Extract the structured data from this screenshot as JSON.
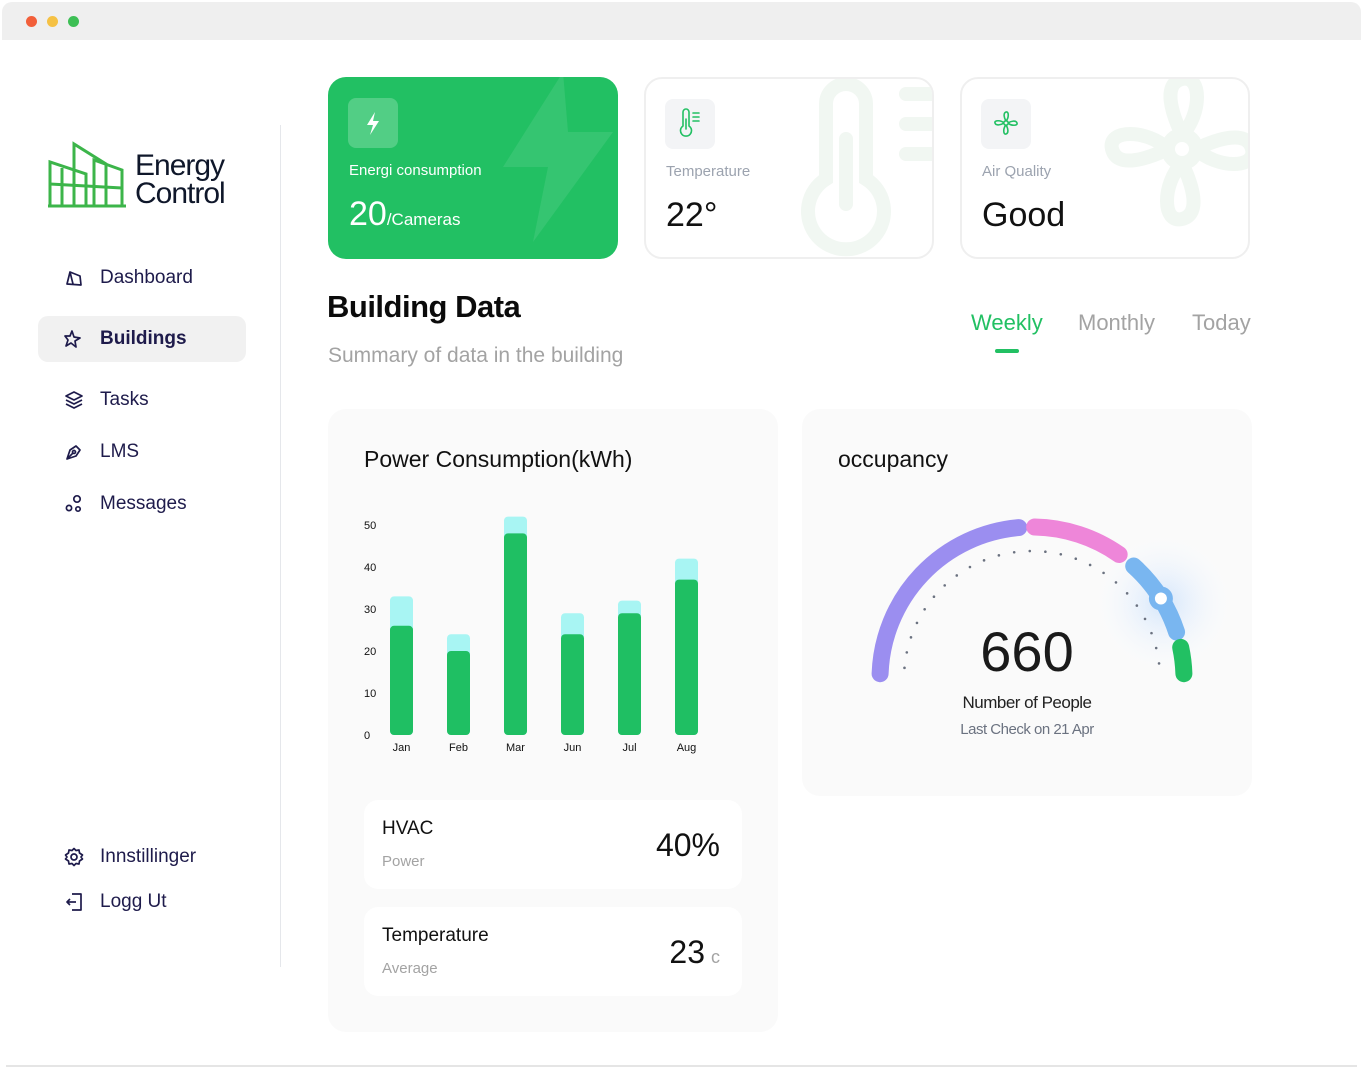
{
  "brand": {
    "line1": "Energy",
    "line2": "Control"
  },
  "nav": {
    "items": [
      {
        "label": "Dashboard",
        "icon": "dashboard-icon"
      },
      {
        "label": "Buildings",
        "icon": "buildings-icon",
        "active": true
      },
      {
        "label": "Tasks",
        "icon": "layers-icon"
      },
      {
        "label": "LMS",
        "icon": "pen-tool-icon"
      },
      {
        "label": "Messages",
        "icon": "messages-icon"
      }
    ],
    "bottom": [
      {
        "label": "Innstillinger",
        "icon": "gear-icon"
      },
      {
        "label": "Logg Ut",
        "icon": "logout-icon"
      }
    ]
  },
  "cards": {
    "energy": {
      "label": "Energi consumption",
      "value": "20",
      "unit": "/Cameras"
    },
    "temperature": {
      "label": "Temperature",
      "value": "22°"
    },
    "air": {
      "label": "Air Quality",
      "value": "Good"
    }
  },
  "section": {
    "title": "Building Data",
    "subtitle": "Summary of data in the building"
  },
  "tabs": [
    {
      "label": "Weekly",
      "active": true
    },
    {
      "label": "Monthly"
    },
    {
      "label": "Today"
    }
  ],
  "power": {
    "title": "Power Consumption(kWh)",
    "metrics": [
      {
        "title": "HVAC",
        "sub": "Power",
        "value": "40%",
        "unit": ""
      },
      {
        "title": "Temperature",
        "sub": "Average",
        "value": "23",
        "unit": "c"
      }
    ]
  },
  "chart_data": {
    "type": "bar",
    "categories": [
      "Jan",
      "Feb",
      "Mar",
      "Jun",
      "Jul",
      "Aug"
    ],
    "series": [
      {
        "values": [
          26,
          20,
          48,
          24,
          29,
          37
        ]
      },
      {
        "values": [
          33,
          24,
          52,
          29,
          32,
          42
        ]
      }
    ],
    "yticks": [
      0,
      10,
      20,
      30,
      40,
      50
    ],
    "ylim": [
      0,
      50
    ],
    "colors": {
      "bar": "#1fbf63",
      "cap": "#a8f5f3"
    }
  },
  "occupancy": {
    "title": "occupancy",
    "value": "660",
    "label": "Number of People",
    "sub": "Last Check on 21 Apr",
    "colors": [
      "#9b8ef0",
      "#ee86d9",
      "#79b6f0",
      "#22c063"
    ]
  },
  "colors": {
    "accent": "#22c063",
    "text": "#1e1b4b"
  }
}
